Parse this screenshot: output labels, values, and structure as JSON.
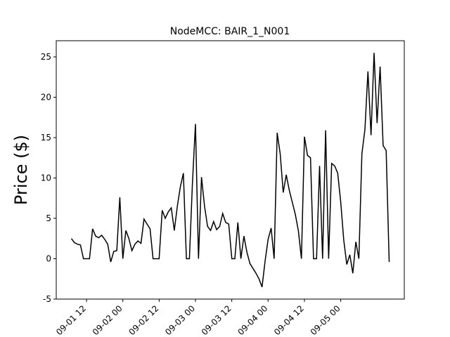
{
  "chart_data": {
    "type": "line",
    "title": "NodeMCC: BAIR_1_N001",
    "y_label": "Price ($)",
    "x": [
      "09-01 07",
      "09-01 08",
      "09-01 09",
      "09-01 10",
      "09-01 11",
      "09-01 12",
      "09-01 13",
      "09-01 14",
      "09-01 15",
      "09-01 16",
      "09-01 17",
      "09-01 18",
      "09-01 19",
      "09-01 20",
      "09-01 21",
      "09-01 22",
      "09-01 23",
      "09-02 00",
      "09-02 01",
      "09-02 02",
      "09-02 03",
      "09-02 04",
      "09-02 05",
      "09-02 06",
      "09-02 07",
      "09-02 08",
      "09-02 09",
      "09-02 10",
      "09-02 11",
      "09-02 12",
      "09-02 13",
      "09-02 14",
      "09-02 15",
      "09-02 16",
      "09-02 17",
      "09-02 18",
      "09-02 19",
      "09-02 20",
      "09-02 21",
      "09-02 22",
      "09-02 23",
      "09-03 00",
      "09-03 01",
      "09-03 02",
      "09-03 03",
      "09-03 04",
      "09-03 05",
      "09-03 06",
      "09-03 07",
      "09-03 08",
      "09-03 09",
      "09-03 10",
      "09-03 11",
      "09-03 12",
      "09-03 13",
      "09-03 14",
      "09-03 15",
      "09-03 16",
      "09-03 17",
      "09-03 18",
      "09-03 19",
      "09-03 20",
      "09-03 21",
      "09-03 22",
      "09-03 23",
      "09-04 00",
      "09-04 01",
      "09-04 02",
      "09-04 03",
      "09-04 04",
      "09-04 05",
      "09-04 06",
      "09-04 07",
      "09-04 08",
      "09-04 09",
      "09-04 10",
      "09-04 11",
      "09-04 12",
      "09-04 13",
      "09-04 14",
      "09-04 15",
      "09-04 16",
      "09-04 17",
      "09-04 18",
      "09-04 19",
      "09-04 20",
      "09-04 21",
      "09-04 22",
      "09-04 23",
      "09-05 00",
      "09-05 01",
      "09-05 02",
      "09-05 03",
      "09-05 04",
      "09-05 05",
      "09-05 06",
      "09-05 07",
      "09-05 08",
      "09-05 09",
      "09-05 10",
      "09-05 11",
      "09-05 12",
      "09-05 13",
      "09-05 14",
      "09-05 15",
      "09-05 16"
    ],
    "series": [
      {
        "color": "#000000",
        "values": [
          2.5,
          2.0,
          1.8,
          1.7,
          0,
          0,
          0,
          3.7,
          2.8,
          2.6,
          2.9,
          2.4,
          1.8,
          -0.4,
          0.9,
          1.0,
          7.6,
          0,
          3.5,
          2.5,
          1.0,
          1.8,
          2.2,
          1.9,
          4.9,
          4.3,
          3.7,
          0,
          0,
          0,
          6.0,
          5.0,
          5.8,
          6.3,
          3.5,
          6.5,
          8.9,
          10.6,
          0,
          0,
          9.4,
          16.7,
          0,
          10.1,
          6.5,
          4.0,
          3.5,
          4.6,
          3.6,
          4.0,
          5.6,
          4.5,
          4.3,
          0,
          0,
          4.5,
          0,
          2.8,
          0.8,
          -0.6,
          -1.2,
          -1.8,
          -2.5,
          -3.5,
          -0.3,
          2.4,
          3.8,
          0,
          15.6,
          13.0,
          8.2,
          10.4,
          8.5,
          7.0,
          5.5,
          3.5,
          0,
          15.1,
          12.8,
          12.5,
          0,
          0,
          11.5,
          0,
          15.9,
          0,
          11.8,
          11.5,
          10.6,
          7.0,
          2.3,
          -0.7,
          0.5,
          -1.8,
          2.1,
          0,
          13.0,
          16.0,
          23.2,
          15.3,
          25.5,
          16.8,
          23.8,
          14.0,
          13.4,
          -0.4
        ]
      }
    ],
    "xlim": [
      "09-01 02",
      "09-05 21"
    ],
    "xticks": [
      "09-01 12",
      "09-02 00",
      "09-02 12",
      "09-03 00",
      "09-03 12",
      "09-04 00",
      "09-04 12",
      "09-05 00"
    ],
    "ylim": [
      -5,
      27
    ],
    "yticks": [
      -5,
      0,
      5,
      10,
      15,
      20,
      25
    ]
  }
}
